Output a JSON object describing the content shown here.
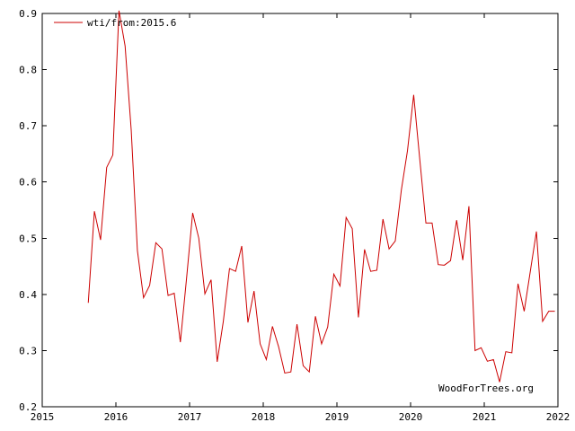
{
  "chart_data": {
    "type": "line",
    "title": "",
    "xlabel": "",
    "ylabel": "",
    "xlim": [
      2015,
      2022
    ],
    "ylim": [
      0.2,
      0.9
    ],
    "x_ticks": [
      2015,
      2016,
      2017,
      2018,
      2019,
      2020,
      2021,
      2022
    ],
    "y_ticks": [
      0.2,
      0.3,
      0.4,
      0.5,
      0.6,
      0.7,
      0.8,
      0.9
    ],
    "x_tick_labels": [
      "2015",
      "2016",
      "2017",
      "2018",
      "2019",
      "2020",
      "2021",
      "2022"
    ],
    "y_tick_labels": [
      "0.2",
      "0.3",
      "0.4",
      "0.5",
      "0.6",
      "0.7",
      "0.8",
      "0.9"
    ],
    "grid": false,
    "legend_position": "top-left",
    "series": [
      {
        "name": "wti/from:2015.6",
        "color": "#cc0000",
        "x": [
          2015.625,
          2015.708,
          2015.792,
          2015.875,
          2015.958,
          2016.042,
          2016.125,
          2016.208,
          2016.292,
          2016.375,
          2016.458,
          2016.542,
          2016.625,
          2016.708,
          2016.792,
          2016.875,
          2016.958,
          2017.042,
          2017.125,
          2017.208,
          2017.292,
          2017.375,
          2017.458,
          2017.542,
          2017.625,
          2017.708,
          2017.792,
          2017.875,
          2017.958,
          2018.042,
          2018.125,
          2018.208,
          2018.292,
          2018.375,
          2018.458,
          2018.542,
          2018.625,
          2018.708,
          2018.792,
          2018.875,
          2018.958,
          2019.042,
          2019.125,
          2019.208,
          2019.292,
          2019.375,
          2019.458,
          2019.542,
          2019.625,
          2019.708,
          2019.792,
          2019.875,
          2019.958,
          2020.042,
          2020.125,
          2020.208,
          2020.292,
          2020.375,
          2020.458,
          2020.542,
          2020.625,
          2020.708,
          2020.792,
          2020.875,
          2020.958,
          2021.042,
          2021.125,
          2021.208,
          2021.292,
          2021.375,
          2021.458,
          2021.542,
          2021.625,
          2021.708,
          2021.792,
          2021.875,
          2021.958
        ],
        "y": [
          0.385,
          0.548,
          0.497,
          0.626,
          0.648,
          0.905,
          0.842,
          0.692,
          0.478,
          0.394,
          0.416,
          0.492,
          0.481,
          0.398,
          0.402,
          0.315,
          0.427,
          0.545,
          0.5,
          0.401,
          0.426,
          0.28,
          0.352,
          0.446,
          0.441,
          0.486,
          0.35,
          0.406,
          0.312,
          0.284,
          0.343,
          0.307,
          0.26,
          0.262,
          0.347,
          0.273,
          0.262,
          0.361,
          0.312,
          0.342,
          0.436,
          0.415,
          0.537,
          0.517,
          0.359,
          0.48,
          0.441,
          0.443,
          0.534,
          0.481,
          0.495,
          0.586,
          0.656,
          0.755,
          0.64,
          0.527,
          0.527,
          0.453,
          0.452,
          0.46,
          0.532,
          0.461,
          0.557,
          0.3,
          0.305,
          0.281,
          0.284,
          0.244,
          0.298,
          0.296,
          0.419,
          0.37,
          0.441,
          0.512,
          0.352,
          0.37,
          0.37
        ]
      }
    ],
    "credit": "WoodForTrees.org"
  }
}
